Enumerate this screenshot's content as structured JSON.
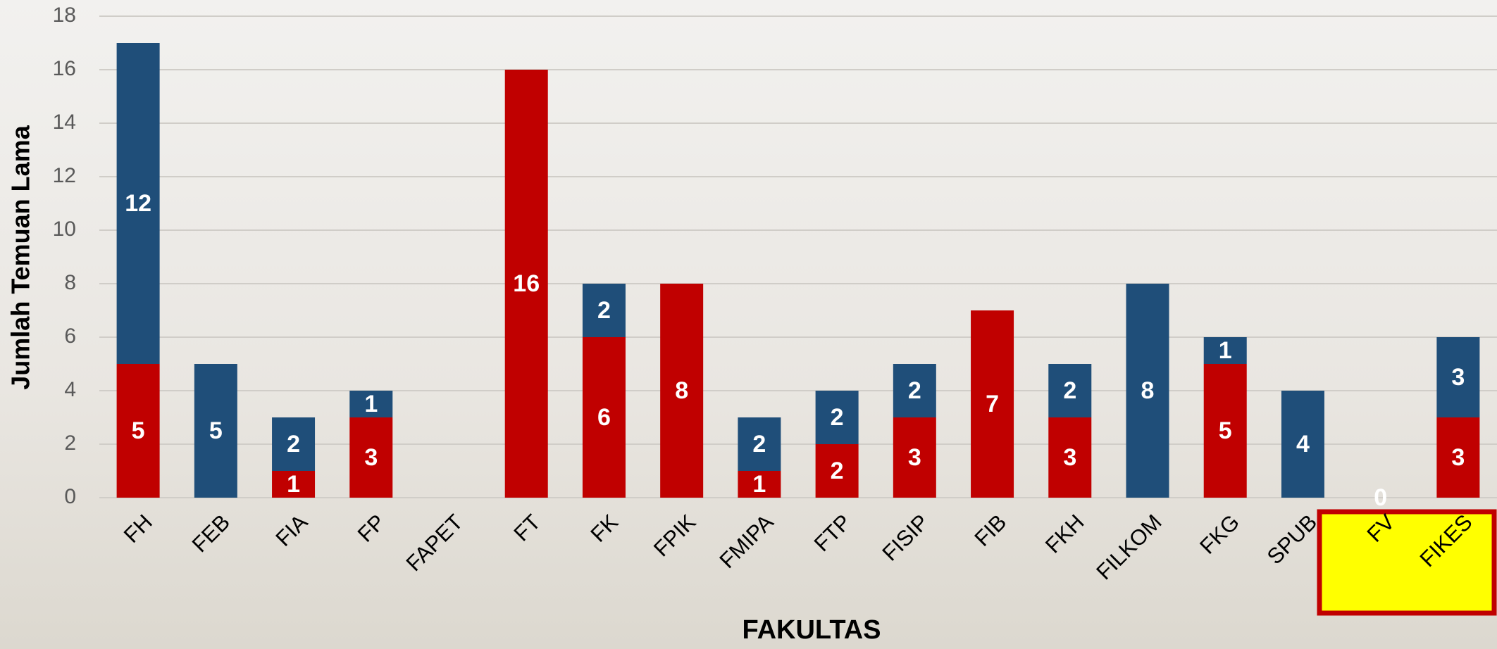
{
  "chart_data": {
    "type": "stacked-bar",
    "categories": [
      "FH",
      "FEB",
      "FIA",
      "FP",
      "FAPET",
      "FT",
      "FK",
      "FPIK",
      "FMIPA",
      "FTP",
      "FISIP",
      "FIB",
      "FKH",
      "FILKOM",
      "FKG",
      "SPUB",
      "FV",
      "FIKES"
    ],
    "series": [
      {
        "color": "#c00000",
        "values": [
          5,
          null,
          1,
          3,
          null,
          16,
          6,
          8,
          1,
          2,
          3,
          7,
          3,
          null,
          5,
          null,
          0,
          3
        ]
      },
      {
        "color": "#1f4e79",
        "values": [
          12,
          5,
          2,
          1,
          null,
          null,
          2,
          null,
          2,
          2,
          2,
          null,
          2,
          8,
          1,
          4,
          null,
          3
        ]
      }
    ],
    "ylim": [
      0,
      18
    ],
    "yticks": [
      0,
      2,
      4,
      6,
      8,
      10,
      12,
      14,
      16,
      18
    ],
    "grid": true,
    "x_label": "FAKULTAS",
    "y_label": "Jumlah Temuan Lama"
  }
}
